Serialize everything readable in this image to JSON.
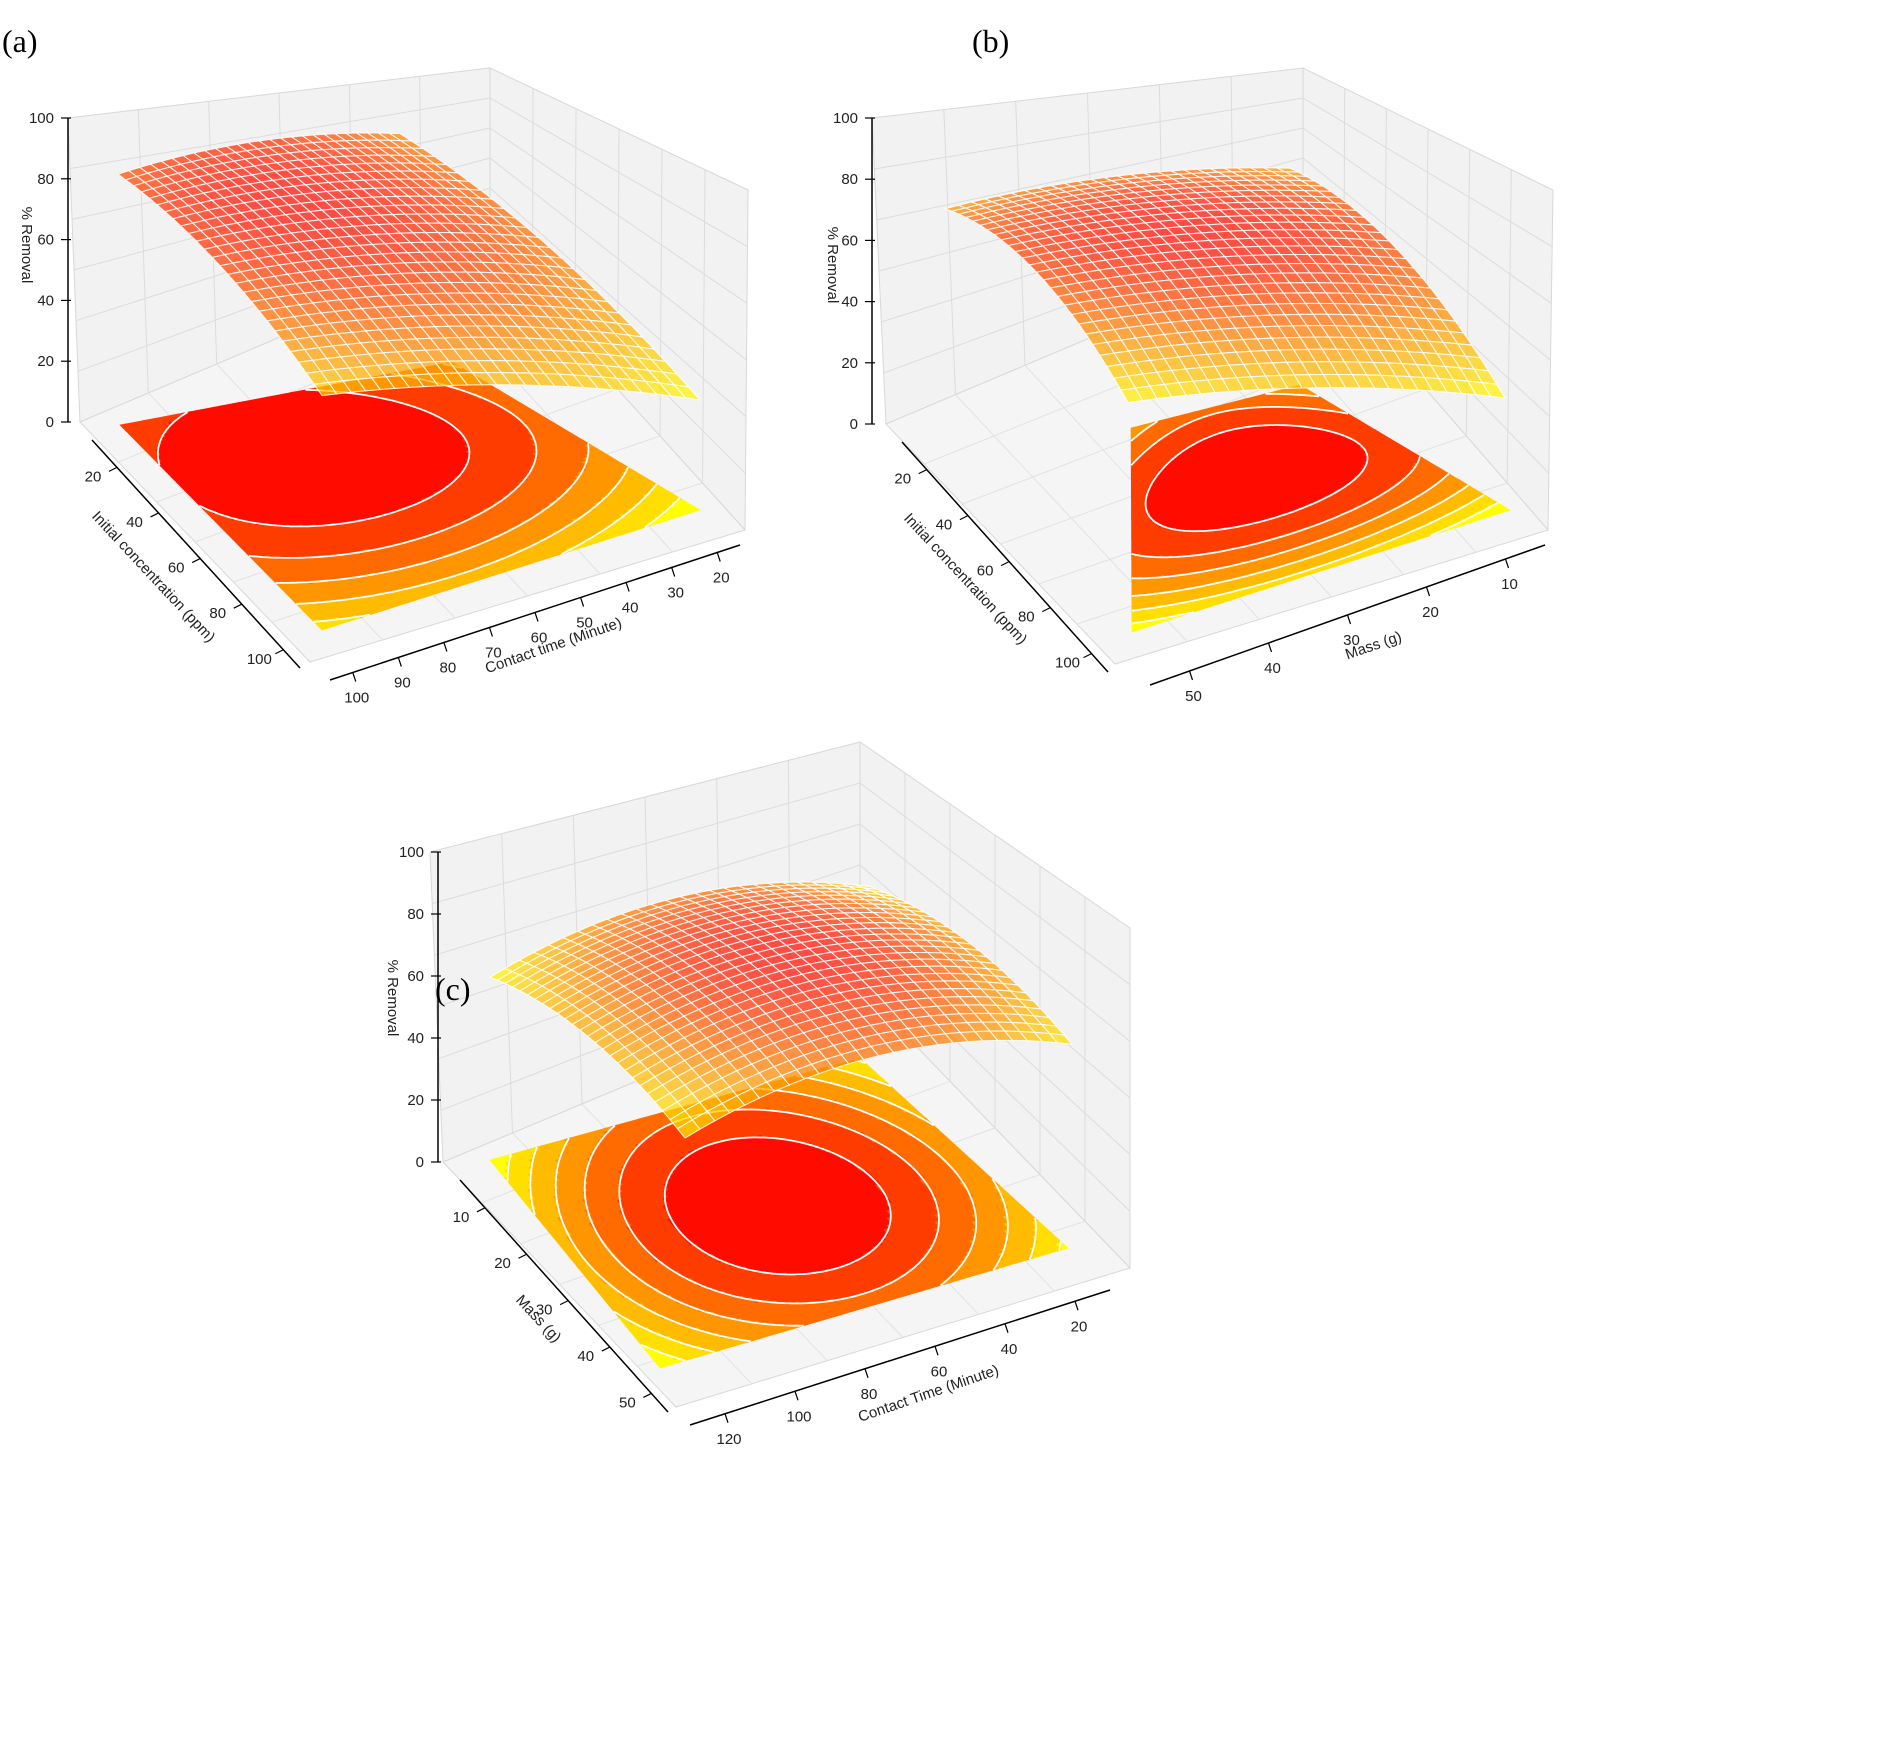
{
  "chart_data": [
    {
      "panel": "(a)",
      "type": "surface",
      "zlabel": "% Removal",
      "zticks": [
        "0",
        "20",
        "40",
        "60",
        "80",
        "100"
      ],
      "zlim": [
        0,
        100
      ],
      "xlabel": "Contact time (Minute)",
      "xticks": [
        "100",
        "90",
        "80",
        "70",
        "60",
        "50",
        "40",
        "30",
        "20"
      ],
      "xlim": [
        110,
        15
      ],
      "ylabel": "Initial concentration (ppm)",
      "yticks": [
        "20",
        "40",
        "60",
        "80",
        "100"
      ],
      "ylim": [
        5,
        110
      ],
      "model": {
        "peak_x": 82,
        "peak_y": 45,
        "peak_z": 76,
        "cx": 0.0045,
        "cy": 0.0025,
        "cxy": 0.0
      }
    },
    {
      "panel": "(b)",
      "type": "surface",
      "zlabel": "% Removal",
      "zticks": [
        "0",
        "20",
        "40",
        "60",
        "80",
        "100"
      ],
      "zlim": [
        0,
        100
      ],
      "xlabel": "Mass (g)",
      "xticks": [
        "50",
        "40",
        "30",
        "20",
        "10"
      ],
      "xlim": [
        55,
        0
      ],
      "ylabel": "Initial concentration (ppm)",
      "yticks": [
        "20",
        "40",
        "60",
        "80",
        "100"
      ],
      "ylim": [
        5,
        110
      ],
      "model": {
        "peak_x": 33,
        "peak_y": 55,
        "peak_z": 82,
        "cx": 0.034,
        "cy": 0.0035,
        "cxy": 0.0
      }
    },
    {
      "panel": "(c)",
      "type": "surface",
      "zlabel": "% Removal",
      "zticks": [
        "0",
        "20",
        "40",
        "60",
        "80",
        "100"
      ],
      "zlim": [
        0,
        100
      ],
      "xlabel": "Contact Time (Minute)",
      "xticks": [
        "120",
        "100",
        "80",
        "60",
        "40",
        "20"
      ],
      "xlim": [
        125,
        10
      ],
      "ylabel": "Mass (g)",
      "yticks": [
        "10",
        "20",
        "30",
        "40",
        "50"
      ],
      "ylim": [
        2,
        52
      ],
      "model": {
        "peak_x": 68,
        "peak_y": 28,
        "peak_z": 80,
        "cx": 0.004,
        "cy": 0.035,
        "cxy": 0.0
      }
    }
  ]
}
